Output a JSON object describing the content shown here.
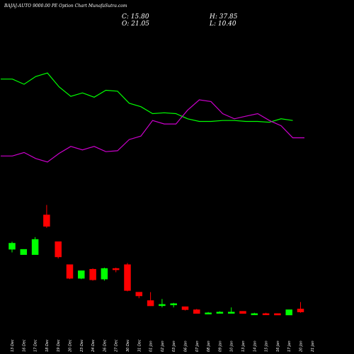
{
  "header": {
    "title": "BAJAJ-AUTO 9000.00  PE Option  Chart MunafaSutra.com",
    "close": "C: 15.80",
    "open": "O: 21.05",
    "high": "H: 37.85",
    "low": "L: 10.40"
  },
  "colors": {
    "up": "#00ff00",
    "down": "#ff0000",
    "green_line": "#00ff00",
    "magenta_line": "#cc00cc",
    "background": "#000000",
    "text": "#ffffff"
  },
  "chart_data": {
    "type": "candlestick",
    "title": "BAJAJ-AUTO 9000.00 PE Option Chart",
    "grid": false,
    "categories": [
      "13 Dec",
      "16 Dec",
      "17 Dec",
      "18 Dec",
      "19 Dec",
      "20 Dec",
      "23 Dec",
      "24 Dec",
      "26 Dec",
      "27 Dec",
      "30 Dec",
      "31 Dec",
      "01 Jan",
      "02 Jan",
      "03 Jan",
      "06 Jan",
      "07 Jan",
      "08 Jan",
      "09 Jan",
      "10 Jan",
      "13 Jan",
      "14 Jan",
      "15 Jan",
      "16 Jan",
      "17 Jan",
      "20 Jan",
      "21 Jan"
    ],
    "candles": [
      {
        "open": 92,
        "close": 100,
        "high": 102,
        "low": 88
      },
      {
        "open": 85,
        "close": 92,
        "high": 92,
        "low": 85
      },
      {
        "open": 85,
        "close": 105,
        "high": 108,
        "low": 85
      },
      {
        "open": 137,
        "close": 122,
        "high": 150,
        "low": 120
      },
      {
        "open": 102,
        "close": 82,
        "high": 102,
        "low": 80
      },
      {
        "open": 72,
        "close": 54,
        "high": 72,
        "low": 53
      },
      {
        "open": 54,
        "close": 64,
        "high": 64,
        "low": 53
      },
      {
        "open": 66,
        "close": 52,
        "high": 67,
        "low": 51
      },
      {
        "open": 53,
        "close": 67,
        "high": 68,
        "low": 51
      },
      {
        "open": 67,
        "close": 66,
        "high": 68,
        "low": 62
      },
      {
        "open": 72,
        "close": 38,
        "high": 74,
        "low": 37
      },
      {
        "open": 36,
        "close": 31,
        "high": 36,
        "low": 28
      },
      {
        "open": 25,
        "close": 18,
        "high": 36,
        "low": 18
      },
      {
        "open": 20,
        "close": 20,
        "high": 27,
        "low": 16
      },
      {
        "open": 20,
        "close": 21,
        "high": 22,
        "low": 16
      },
      {
        "open": 17,
        "close": 13,
        "high": 17,
        "low": 12
      },
      {
        "open": 13,
        "close": 8,
        "high": 14,
        "low": 8
      },
      {
        "open": 9,
        "close": 9,
        "high": 10,
        "low": 9
      },
      {
        "open": 9,
        "close": 10,
        "high": 11,
        "low": 9
      },
      {
        "open": 9,
        "close": 10,
        "high": 16,
        "low": 9
      },
      {
        "open": 11,
        "close": 8,
        "high": 11,
        "low": 8
      },
      {
        "open": 8,
        "close": 8,
        "high": 9,
        "low": 7
      },
      {
        "open": 8,
        "close": 7,
        "high": 9,
        "low": 7
      },
      {
        "open": 8,
        "close": 6,
        "high": 8,
        "low": 6
      },
      {
        "open": 6,
        "close": 13,
        "high": 13,
        "low": 6
      },
      {
        "open": 14,
        "close": 10,
        "high": 23,
        "low": 9
      }
    ],
    "candle_x_index": [
      0,
      1,
      2,
      3,
      4,
      5,
      6,
      7,
      8,
      9,
      10,
      11,
      12,
      13,
      14,
      15,
      16,
      17,
      18,
      19,
      20,
      21,
      22,
      23,
      24,
      25
    ],
    "green_line": [
      56,
      56,
      50,
      59,
      63,
      47,
      36,
      40,
      35,
      43,
      42,
      28,
      24,
      16,
      17,
      16,
      10,
      7,
      7,
      8,
      8,
      7,
      7,
      6,
      10,
      8
    ],
    "magenta_line": [
      -33,
      -33,
      -29,
      -36,
      -40,
      -30,
      -22,
      -26,
      -22,
      -28,
      -27,
      -14,
      -10,
      8,
      4,
      4,
      20,
      32,
      30,
      16,
      10,
      13,
      16,
      8,
      2,
      -12,
      -12
    ]
  }
}
